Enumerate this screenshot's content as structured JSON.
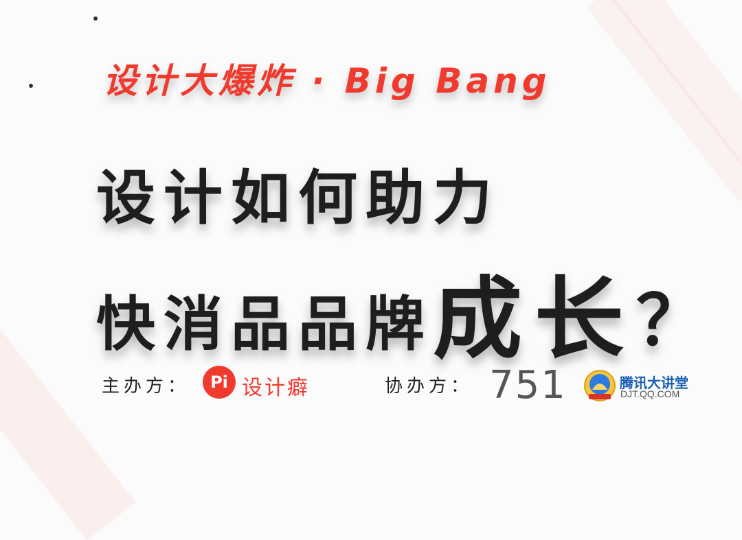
{
  "headline": "设计大爆炸 · Big Bang",
  "title": {
    "line1": "设计如何助力",
    "line2_prefix": "快消品品牌",
    "line2_emphasis": "成长",
    "line2_suffix": "？"
  },
  "sponsors": {
    "host_label": "主办方：",
    "host_logo_mark": "Pi",
    "host_name": "设计癖",
    "co_label": "协办方：",
    "co_logo_1": "751",
    "co_logo_2_name": "腾讯大讲堂",
    "co_logo_2_url": "DJT.QQ.COM"
  },
  "colors": {
    "accent": "#f03a2e",
    "text": "#1e1e1e",
    "tencent_blue": "#1a5fb4"
  },
  "icons": {
    "host_logo": "pi-logo-icon",
    "tencent_badge": "tencent-badge-icon"
  }
}
